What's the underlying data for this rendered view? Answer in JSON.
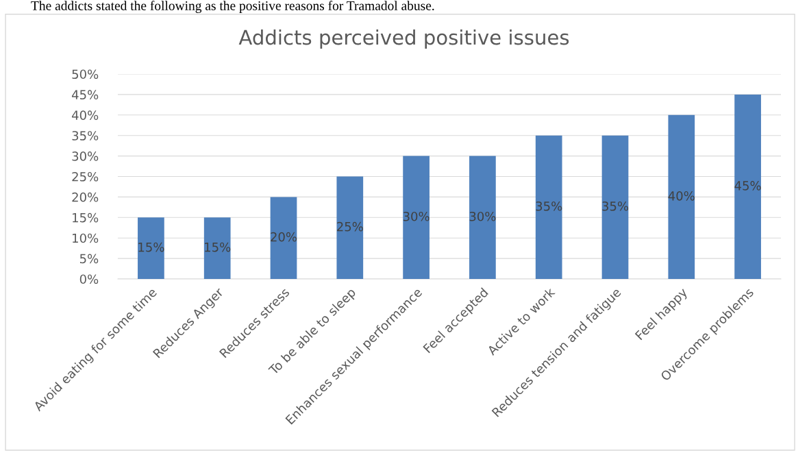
{
  "chart_data": {
    "type": "bar",
    "title": "Addicts perceived positive issues",
    "annotations": [
      "The addicts stated the following as the positive reasons for Tramadol abuse."
    ],
    "categories": [
      "Avoid eating for some time",
      "Reduces Anger",
      "Reduces stress",
      "To be able to sleep",
      "Enhances sexual performance",
      "Feel accepted",
      "Active to work",
      "Reduces tension and fatigue",
      "Feel happy",
      "Overcome problems"
    ],
    "values": [
      15,
      15,
      20,
      25,
      30,
      30,
      35,
      35,
      40,
      45
    ],
    "color": "#4f81bd",
    "ylim": [
      0,
      50
    ],
    "yticks": [
      {
        "value": 0,
        "label": "0%"
      },
      {
        "value": 5,
        "label": "5%"
      },
      {
        "value": 10,
        "label": "10%"
      },
      {
        "value": 15,
        "label": "15%"
      },
      {
        "value": 20,
        "label": "20%"
      },
      {
        "value": 25,
        "label": "25%"
      },
      {
        "value": 30,
        "label": "30%"
      },
      {
        "value": 35,
        "label": "35%"
      },
      {
        "value": 40,
        "label": "40%"
      },
      {
        "value": 45,
        "label": "45%"
      },
      {
        "value": 50,
        "label": "50%"
      }
    ],
    "value_labels": [
      "15%",
      "15%",
      "20%",
      "25%",
      "30%",
      "30%",
      "35%",
      "35%",
      "40%",
      "45%"
    ],
    "grid": "y"
  }
}
